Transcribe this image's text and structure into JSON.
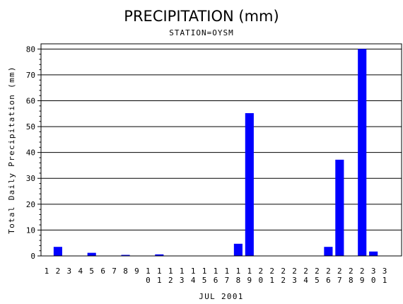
{
  "chart_data": {
    "type": "bar",
    "title": "PRECIPITATION (mm)",
    "subtitle": "STATION=OYSM",
    "xlabel": "JUL 2001",
    "ylabel": "Total Daily Precipitation (mm)",
    "ylim": [
      0,
      82
    ],
    "yticks": [
      0,
      10,
      20,
      30,
      40,
      50,
      60,
      70,
      80
    ],
    "grid": true,
    "bar_color": "#0000ff",
    "categories": [
      "1",
      "2",
      "3",
      "4",
      "5",
      "6",
      "7",
      "8",
      "9",
      "10",
      "11",
      "12",
      "13",
      "14",
      "15",
      "16",
      "17",
      "18",
      "19",
      "20",
      "21",
      "22",
      "23",
      "24",
      "25",
      "26",
      "27",
      "28",
      "29",
      "30",
      "31"
    ],
    "values": [
      0,
      3.5,
      0,
      0,
      1.2,
      0,
      0,
      0.4,
      0,
      0,
      0.6,
      0,
      0,
      0,
      0,
      0,
      0,
      4.7,
      55.2,
      0,
      0,
      0,
      0,
      0,
      0,
      3.5,
      37.2,
      0,
      80,
      1.7,
      0
    ]
  }
}
